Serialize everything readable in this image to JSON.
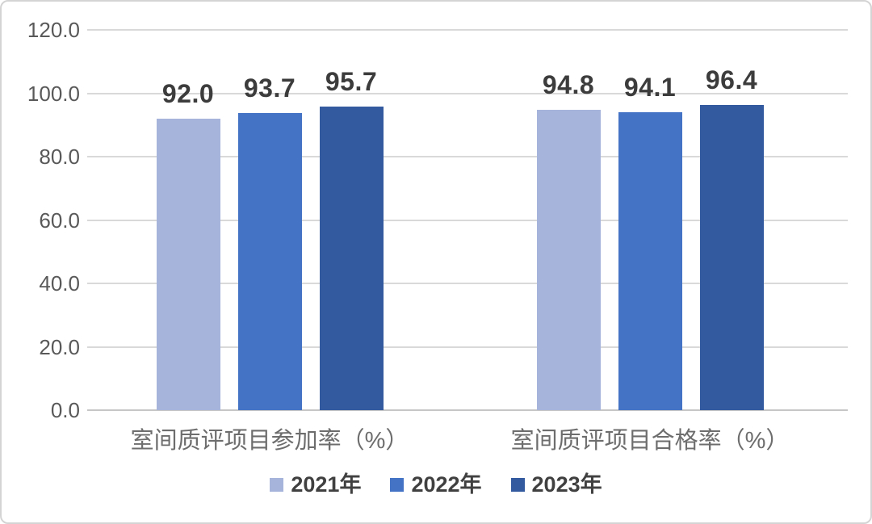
{
  "chart_data": {
    "type": "bar",
    "categories": [
      "室间质评项目参加率（%）",
      "室间质评项目合格率（%）"
    ],
    "series": [
      {
        "name": "2021年",
        "color": "#a6b4db",
        "values": [
          92.0,
          94.8
        ],
        "labels": [
          "92.0",
          "94.8"
        ]
      },
      {
        "name": "2022年",
        "color": "#4472c4",
        "values": [
          93.7,
          94.1
        ],
        "labels": [
          "93.7",
          "94.1"
        ]
      },
      {
        "name": "2023年",
        "color": "#33599f",
        "values": [
          95.7,
          96.4
        ],
        "labels": [
          "95.7",
          "96.4"
        ]
      }
    ],
    "ylim": [
      0,
      120
    ],
    "ytick_step": 20,
    "ytick_labels": [
      "0.0",
      "20.0",
      "40.0",
      "60.0",
      "80.0",
      "100.0",
      "120.0"
    ],
    "grid": true,
    "legend_position": "bottom",
    "value_labels_shown": true
  },
  "styles": {
    "background": "#ffffff",
    "border_color": "#d4d4d4",
    "grid_color": "#d9d9d9",
    "axis_line_color": "#c6c6c6",
    "tick_label_color": "#595959",
    "category_label_color": "#6d6d6d",
    "value_label_color": "#3c3c3c",
    "legend_label_color": "#404040"
  }
}
